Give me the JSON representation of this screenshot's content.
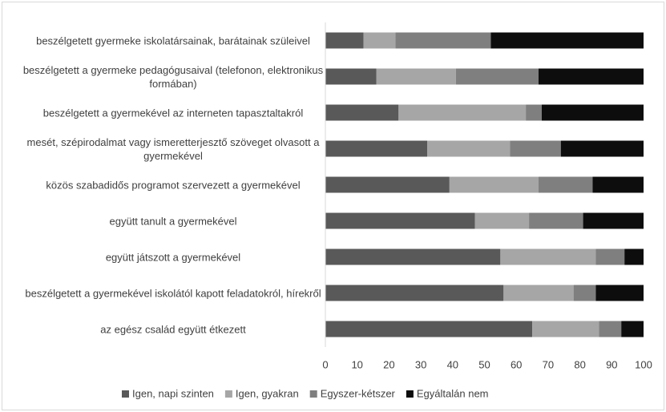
{
  "chart_data": {
    "type": "stacked_barh",
    "categories": [
      "beszélgetett gyermeke iskolatársainak, barátainak szüleivel",
      "beszélgetett a gyermeke pedagógusaival (telefonon, elektronikus formában)",
      "beszélgetett a gyermekével az interneten tapasztaltakról",
      "mesét, szépirodalmat vagy ismeretterjesztő szöveget olvasott a gyermekével",
      "közös szabadidős programot szervezett a gyermekével",
      "együtt tanult a gyermekével",
      "együtt játszott a gyermekével",
      "beszélgetett a gyermekével iskolától kapott feladatokról, hírekről",
      "az egész család együtt étkezett"
    ],
    "series": [
      {
        "name": "Igen, napi szinten",
        "color": "#595959",
        "values": [
          12,
          16,
          23,
          32,
          39,
          47,
          55,
          56,
          65
        ]
      },
      {
        "name": "Igen, gyakran",
        "color": "#a6a6a6",
        "values": [
          10,
          25,
          40,
          26,
          28,
          17,
          30,
          22,
          21
        ]
      },
      {
        "name": "Egyszer-kétszer",
        "color": "#7f7f7f",
        "values": [
          30,
          26,
          5,
          16,
          17,
          17,
          9,
          7,
          7
        ]
      },
      {
        "name": "Egyáltalán nem",
        "color": "#0d0d0d",
        "values": [
          48,
          33,
          32,
          26,
          16,
          19,
          6,
          15,
          7
        ]
      }
    ],
    "xlim": [
      0,
      100
    ],
    "xticks": [
      0,
      10,
      20,
      30,
      40,
      50,
      60,
      70,
      80,
      90,
      100
    ],
    "legend": "bottom"
  }
}
